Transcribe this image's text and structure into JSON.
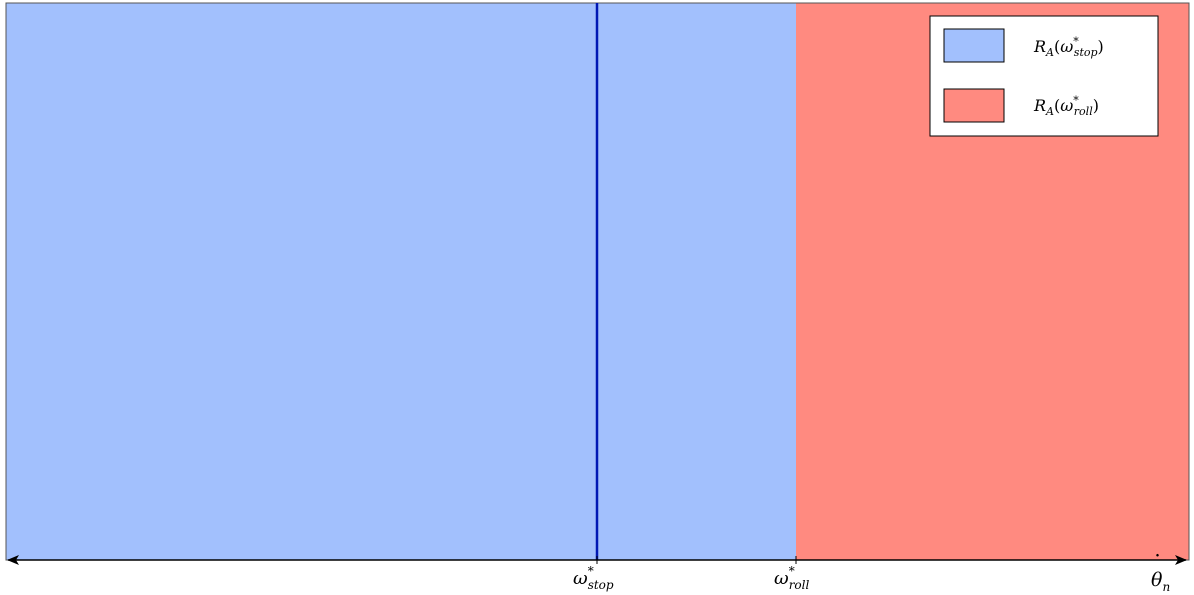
{
  "colors": {
    "stop_region": "#a2c0fd",
    "roll_region": "#ff8a80",
    "stop_line": "#0018b4",
    "axis": "#000000",
    "border": "#555555"
  },
  "regions": [
    {
      "id": "stop",
      "from": "min",
      "to": "omega_roll"
    },
    {
      "id": "roll",
      "from": "omega_roll",
      "to": "max"
    }
  ],
  "axis": {
    "label": {
      "base": "θ",
      "accent": "˙",
      "sub": "n"
    },
    "ticks": [
      {
        "id": "omega_stop",
        "base": "ω",
        "sup": "*",
        "sub": "stop"
      },
      {
        "id": "omega_roll",
        "base": "ω",
        "sup": "*",
        "sub": "roll"
      }
    ]
  },
  "legend": {
    "entries": [
      {
        "color_key": "stop_region",
        "prefix": "R",
        "prefix_sub": "A",
        "open": "(",
        "base": "ω",
        "sup": "*",
        "sub": "stop",
        "close": ")"
      },
      {
        "color_key": "roll_region",
        "prefix": "R",
        "prefix_sub": "A",
        "open": "(",
        "base": "ω",
        "sup": "*",
        "sub": "roll",
        "close": ")"
      }
    ]
  }
}
